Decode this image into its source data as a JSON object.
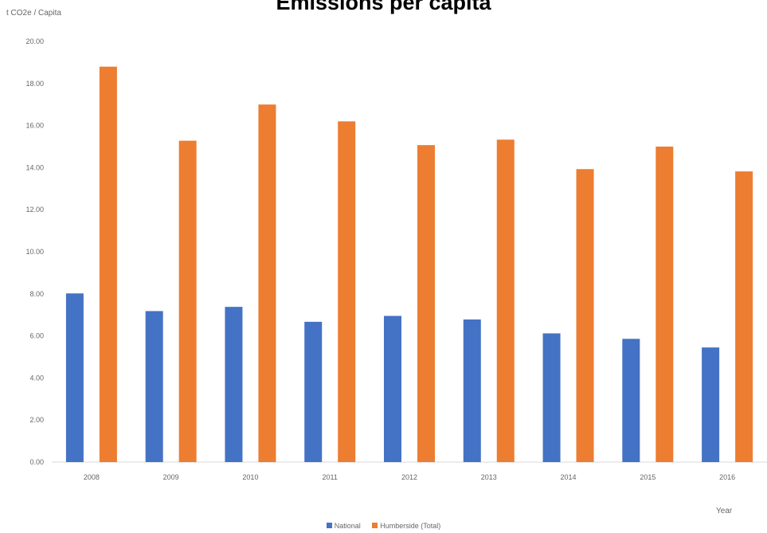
{
  "chart_data": {
    "type": "bar",
    "title": "Emissions per capita",
    "ylabel": "t CO2e / Capita",
    "xlabel": "Year",
    "categories": [
      "2008",
      "2009",
      "2010",
      "2011",
      "2012",
      "2013",
      "2014",
      "2015",
      "2016"
    ],
    "series": [
      {
        "name": "National",
        "color": "#4472C4",
        "values": [
          8.02,
          7.18,
          7.38,
          6.67,
          6.95,
          6.78,
          6.12,
          5.86,
          5.45
        ]
      },
      {
        "name": "Humberside (Total)",
        "color": "#ED7D31",
        "values": [
          18.8,
          15.28,
          17.0,
          16.2,
          15.07,
          15.33,
          13.93,
          15.0,
          13.82
        ]
      }
    ],
    "ylim": [
      0,
      20
    ],
    "yticks": [
      "0.00",
      "2.00",
      "4.00",
      "6.00",
      "8.00",
      "10.00",
      "12.00",
      "14.00",
      "16.00",
      "18.00",
      "20.00"
    ],
    "grid": false,
    "legend_position": "bottom"
  }
}
